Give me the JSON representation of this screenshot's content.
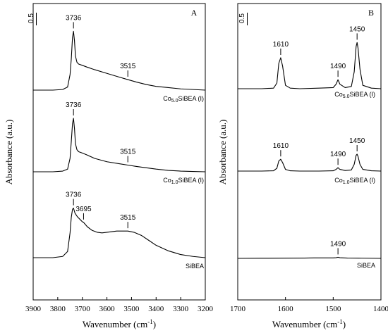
{
  "ylabel_left": "Absorbance (a.u.)",
  "ylabel_right": "Absorbance (a.u.)",
  "chart_data": [
    {
      "type": "line",
      "panel_label": "A",
      "xlabel": "Wavenumber (cm",
      "xlabel_sup": "-1",
      "xlabel_close": ")",
      "xlim": [
        3900,
        3200
      ],
      "xticks": [
        "3900",
        "3800",
        "3700",
        "3600",
        "3500",
        "3400",
        "3300",
        "3200"
      ],
      "xtick_values": [
        3900,
        3800,
        3700,
        3600,
        3500,
        3400,
        3300,
        3200
      ],
      "scale_bar_label": "0.5",
      "series": [
        {
          "name_main": "Co",
          "name_sub": "5.0",
          "name_rest": "SiBEA (I)",
          "baseline": 0.0,
          "x": [
            3900,
            3820,
            3780,
            3760,
            3750,
            3745,
            3740,
            3736,
            3732,
            3728,
            3722,
            3715,
            3700,
            3680,
            3650,
            3600,
            3550,
            3515,
            3480,
            3440,
            3400,
            3350,
            3300,
            3250,
            3200
          ],
          "y": [
            0.0,
            0.0,
            0.01,
            0.05,
            0.25,
            0.5,
            0.85,
            0.95,
            0.8,
            0.55,
            0.45,
            0.42,
            0.4,
            0.37,
            0.33,
            0.27,
            0.21,
            0.17,
            0.13,
            0.09,
            0.06,
            0.04,
            0.02,
            0.01,
            0.0
          ]
        },
        {
          "name_main": "Co",
          "name_sub": "1.0",
          "name_rest": "SiBEA (I)",
          "baseline": 0.0,
          "x": [
            3900,
            3820,
            3780,
            3760,
            3750,
            3745,
            3740,
            3736,
            3732,
            3728,
            3722,
            3715,
            3700,
            3680,
            3650,
            3600,
            3550,
            3515,
            3480,
            3440,
            3400,
            3350,
            3300,
            3250,
            3200
          ],
          "y": [
            0.0,
            0.0,
            0.01,
            0.04,
            0.2,
            0.45,
            0.72,
            0.8,
            0.65,
            0.42,
            0.33,
            0.3,
            0.28,
            0.25,
            0.2,
            0.15,
            0.12,
            0.1,
            0.08,
            0.06,
            0.04,
            0.02,
            0.01,
            0.005,
            0.0
          ]
        },
        {
          "name_main": "SiBEA",
          "name_sub": "",
          "name_rest": "",
          "baseline": 0.0,
          "x": [
            3900,
            3820,
            3780,
            3760,
            3750,
            3745,
            3740,
            3736,
            3730,
            3720,
            3710,
            3700,
            3695,
            3680,
            3660,
            3640,
            3620,
            3600,
            3580,
            3560,
            3540,
            3515,
            3490,
            3460,
            3430,
            3400,
            3350,
            3300,
            3250,
            3200
          ],
          "y": [
            0.0,
            0.0,
            0.02,
            0.1,
            0.4,
            0.65,
            0.78,
            0.8,
            0.72,
            0.66,
            0.62,
            0.58,
            0.57,
            0.5,
            0.44,
            0.41,
            0.4,
            0.41,
            0.42,
            0.43,
            0.43,
            0.43,
            0.41,
            0.36,
            0.28,
            0.2,
            0.11,
            0.05,
            0.02,
            0.0
          ]
        }
      ],
      "annotations": [
        {
          "series": 0,
          "label": "3736",
          "x": 3736
        },
        {
          "series": 0,
          "label": "3515",
          "x": 3515
        },
        {
          "series": 1,
          "label": "3736",
          "x": 3736
        },
        {
          "series": 1,
          "label": "3515",
          "x": 3515
        },
        {
          "series": 2,
          "label": "3736",
          "x": 3736
        },
        {
          "series": 2,
          "label": "3695",
          "x": 3695
        },
        {
          "series": 2,
          "label": "3515",
          "x": 3515
        }
      ]
    },
    {
      "type": "line",
      "panel_label": "B",
      "xlabel": "Wavenumber (cm",
      "xlabel_sup": "-1",
      "xlabel_close": ")",
      "xlim": [
        1700,
        1400
      ],
      "xticks": [
        "1700",
        "1600",
        "1500",
        "1400"
      ],
      "xtick_values": [
        1700,
        1600,
        1500,
        1400
      ],
      "scale_bar_label": "0.5",
      "series": [
        {
          "name_main": "Co",
          "name_sub": "5.0",
          "name_rest": "SiBEA (I)",
          "x": [
            1700,
            1650,
            1625,
            1618,
            1614,
            1610,
            1606,
            1600,
            1590,
            1570,
            1530,
            1500,
            1494,
            1490,
            1486,
            1475,
            1462,
            1456,
            1452,
            1450,
            1448,
            1444,
            1438,
            1420,
            1400
          ],
          "y": [
            0.0,
            0.0,
            0.01,
            0.1,
            0.45,
            0.55,
            0.4,
            0.06,
            0.01,
            0.0,
            0.01,
            0.02,
            0.08,
            0.16,
            0.08,
            0.02,
            0.04,
            0.3,
            0.75,
            0.82,
            0.72,
            0.35,
            0.06,
            0.01,
            0.0
          ]
        },
        {
          "name_main": "Co",
          "name_sub": "1.0",
          "name_rest": "SiBEA (I)",
          "x": [
            1700,
            1650,
            1625,
            1618,
            1614,
            1610,
            1606,
            1600,
            1590,
            1570,
            1530,
            1500,
            1494,
            1490,
            1486,
            1475,
            1462,
            1456,
            1452,
            1450,
            1448,
            1444,
            1438,
            1420,
            1400
          ],
          "y": [
            0.0,
            0.0,
            0.005,
            0.05,
            0.18,
            0.21,
            0.15,
            0.03,
            0.005,
            0.0,
            0.0,
            0.005,
            0.03,
            0.06,
            0.03,
            0.01,
            0.02,
            0.12,
            0.28,
            0.3,
            0.26,
            0.12,
            0.03,
            0.005,
            0.0
          ]
        },
        {
          "name_main": "SiBEA",
          "name_sub": "",
          "name_rest": "",
          "x": [
            1700,
            1650,
            1600,
            1560,
            1540,
            1520,
            1500,
            1494,
            1490,
            1486,
            1470,
            1440,
            1400
          ],
          "y": [
            0.0,
            0.002,
            0.004,
            0.006,
            0.008,
            0.008,
            0.008,
            0.012,
            0.02,
            0.012,
            0.006,
            0.003,
            0.0
          ]
        }
      ],
      "annotations": [
        {
          "series": 0,
          "label": "1610",
          "x": 1610
        },
        {
          "series": 0,
          "label": "1490",
          "x": 1490
        },
        {
          "series": 0,
          "label": "1450",
          "x": 1450
        },
        {
          "series": 1,
          "label": "1610",
          "x": 1610
        },
        {
          "series": 1,
          "label": "1490",
          "x": 1490
        },
        {
          "series": 1,
          "label": "1450",
          "x": 1450
        },
        {
          "series": 2,
          "label": "1490",
          "x": 1490
        }
      ]
    }
  ]
}
